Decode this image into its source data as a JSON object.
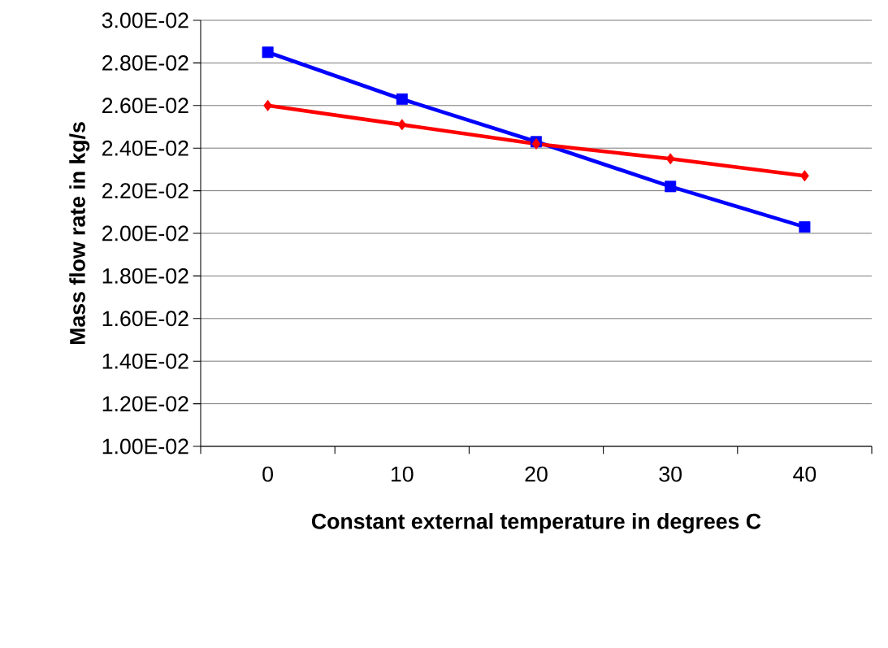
{
  "chart_data": {
    "type": "line",
    "xlabel": "Constant external temperature in degrees C",
    "ylabel": "Mass flow rate in kg/s",
    "categories": [
      "0",
      "10",
      "20",
      "30",
      "40"
    ],
    "series": [
      {
        "color": "#ff0000",
        "marker": "diamond",
        "values": [
          0.026,
          0.0251,
          0.0242,
          0.0235,
          0.0227
        ]
      },
      {
        "color": "#0000ff",
        "marker": "square",
        "values": [
          0.0285,
          0.0263,
          0.0243,
          0.0222,
          0.0203
        ]
      }
    ],
    "ylim": [
      0.01,
      0.03
    ],
    "yticks": [
      {
        "value": 0.01,
        "label": "1.00E-02"
      },
      {
        "value": 0.012,
        "label": "1.20E-02"
      },
      {
        "value": 0.014,
        "label": "1.40E-02"
      },
      {
        "value": 0.016,
        "label": "1.60E-02"
      },
      {
        "value": 0.018,
        "label": "1.80E-02"
      },
      {
        "value": 0.02,
        "label": "2.00E-02"
      },
      {
        "value": 0.022,
        "label": "2.20E-02"
      },
      {
        "value": 0.024,
        "label": "2.40E-02"
      },
      {
        "value": 0.026,
        "label": "2.60E-02"
      },
      {
        "value": 0.028,
        "label": "2.80E-02"
      },
      {
        "value": 0.03,
        "label": "3.00E-02"
      }
    ],
    "grid": "y",
    "line_style": "solid"
  }
}
